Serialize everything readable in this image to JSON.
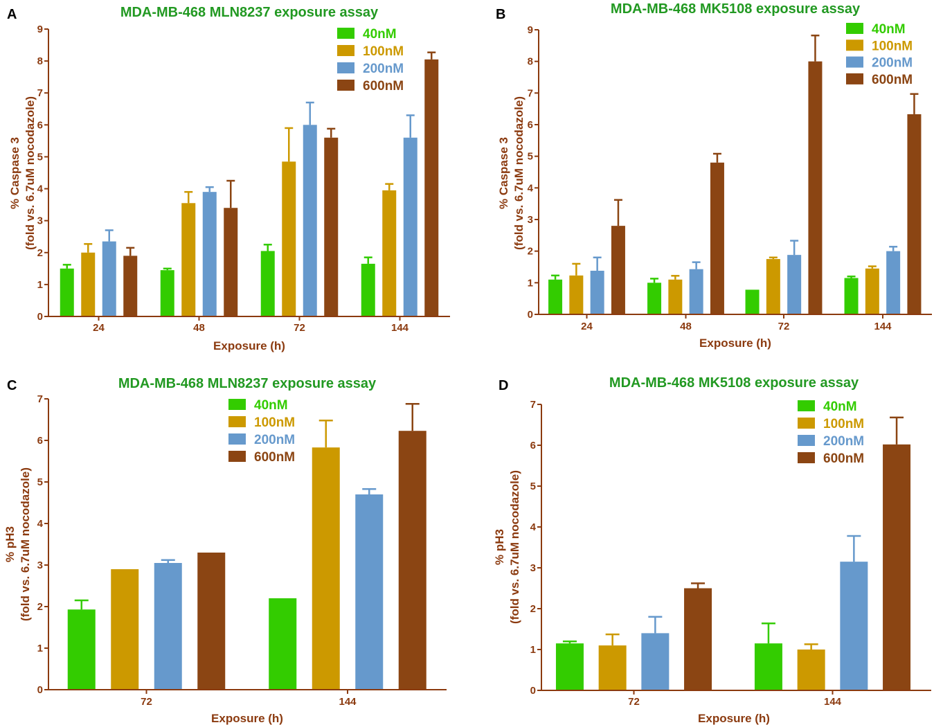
{
  "style": {
    "background": "#ffffff",
    "title_color": "#229922",
    "axis_color": "#8b3a0f",
    "panel_label_color": "#000000"
  },
  "chart_data": [
    {
      "panel_label": "A",
      "type": "bar",
      "title": "MDA-MB-468 MLN8237 exposure assay",
      "xlabel": "Exposure (h)",
      "ylabel": [
        "% Caspase 3",
        "(fold vs. 6.7uM nocodazole)"
      ],
      "ylim": [
        0,
        9
      ],
      "yticks": [
        0,
        1,
        2,
        3,
        4,
        5,
        6,
        7,
        8,
        9
      ],
      "grid": false,
      "categories": [
        "24",
        "48",
        "72",
        "144"
      ],
      "series": [
        {
          "name": "40nM",
          "color": "#33cc00",
          "values": [
            1.5,
            1.45,
            2.05,
            1.65
          ],
          "errors": [
            0.12,
            0.05,
            0.2,
            0.2
          ]
        },
        {
          "name": "100nM",
          "color": "#cc9900",
          "values": [
            2.0,
            3.55,
            4.85,
            3.95
          ],
          "errors": [
            0.27,
            0.35,
            1.05,
            0.2
          ]
        },
        {
          "name": "200nM",
          "color": "#6699cc",
          "values": [
            2.35,
            3.9,
            6.0,
            5.6
          ],
          "errors": [
            0.35,
            0.15,
            0.7,
            0.7
          ]
        },
        {
          "name": "600nM",
          "color": "#8b4513",
          "values": [
            1.9,
            3.4,
            5.6,
            8.05
          ],
          "errors": [
            0.25,
            0.85,
            0.28,
            0.22
          ]
        }
      ]
    },
    {
      "panel_label": "B",
      "type": "bar",
      "title": "MDA-MB-468 MK5108 exposure assay",
      "xlabel": "Exposure (h)",
      "ylabel": [
        "% Caspase 3",
        "(fold vs. 6.7uM nocodazole)"
      ],
      "ylim": [
        0,
        9
      ],
      "yticks": [
        0,
        1,
        2,
        3,
        4,
        5,
        6,
        7,
        8,
        9
      ],
      "grid": false,
      "categories": [
        "24",
        "48",
        "72",
        "144"
      ],
      "series": [
        {
          "name": "40nM",
          "color": "#33cc00",
          "values": [
            1.1,
            1.0,
            0.78,
            1.15
          ],
          "errors": [
            0.13,
            0.13,
            0,
            0.05
          ]
        },
        {
          "name": "100nM",
          "color": "#cc9900",
          "values": [
            1.23,
            1.1,
            1.75,
            1.45
          ],
          "errors": [
            0.37,
            0.12,
            0.05,
            0.07
          ]
        },
        {
          "name": "200nM",
          "color": "#6699cc",
          "values": [
            1.38,
            1.43,
            1.88,
            2.0
          ],
          "errors": [
            0.42,
            0.22,
            0.45,
            0.14
          ]
        },
        {
          "name": "600nM",
          "color": "#8b4513",
          "values": [
            2.8,
            4.8,
            8.0,
            6.33
          ],
          "errors": [
            0.82,
            0.28,
            0.82,
            0.64
          ]
        }
      ]
    },
    {
      "panel_label": "C",
      "type": "bar",
      "title": "MDA-MB-468 MLN8237 exposure assay",
      "xlabel": "Exposure (h)",
      "ylabel": [
        "% pH3",
        "(fold vs. 6.7uM nocodazole)"
      ],
      "ylim": [
        0,
        7
      ],
      "yticks": [
        0,
        1,
        2,
        3,
        4,
        5,
        6,
        7
      ],
      "grid": false,
      "categories": [
        "72",
        "144"
      ],
      "series": [
        {
          "name": "40nM",
          "color": "#33cc00",
          "values": [
            1.93,
            2.2
          ],
          "errors": [
            0.22,
            0
          ]
        },
        {
          "name": "100nM",
          "color": "#cc9900",
          "values": [
            2.9,
            5.83
          ],
          "errors": [
            0,
            0.65
          ]
        },
        {
          "name": "200nM",
          "color": "#6699cc",
          "values": [
            3.05,
            4.7
          ],
          "errors": [
            0.07,
            0.13
          ]
        },
        {
          "name": "600nM",
          "color": "#8b4513",
          "values": [
            3.3,
            6.23
          ],
          "errors": [
            0,
            0.65
          ]
        }
      ]
    },
    {
      "panel_label": "D",
      "type": "bar",
      "title": "MDA-MB-468 MK5108 exposure assay",
      "xlabel": "Exposure (h)",
      "ylabel": [
        "% pH3",
        "(fold vs. 6.7uM nocodazole)"
      ],
      "ylim": [
        0,
        7
      ],
      "yticks": [
        0,
        1,
        2,
        3,
        4,
        5,
        6,
        7
      ],
      "grid": false,
      "categories": [
        "72",
        "144"
      ],
      "series": [
        {
          "name": "40nM",
          "color": "#33cc00",
          "values": [
            1.15,
            1.15
          ],
          "errors": [
            0.05,
            0.49
          ]
        },
        {
          "name": "100nM",
          "color": "#cc9900",
          "values": [
            1.1,
            1.0
          ],
          "errors": [
            0.27,
            0.13
          ]
        },
        {
          "name": "200nM",
          "color": "#6699cc",
          "values": [
            1.4,
            3.15
          ],
          "errors": [
            0.4,
            0.63
          ]
        },
        {
          "name": "600nM",
          "color": "#8b4513",
          "values": [
            2.5,
            6.02
          ],
          "errors": [
            0.12,
            0.66
          ]
        }
      ]
    }
  ]
}
